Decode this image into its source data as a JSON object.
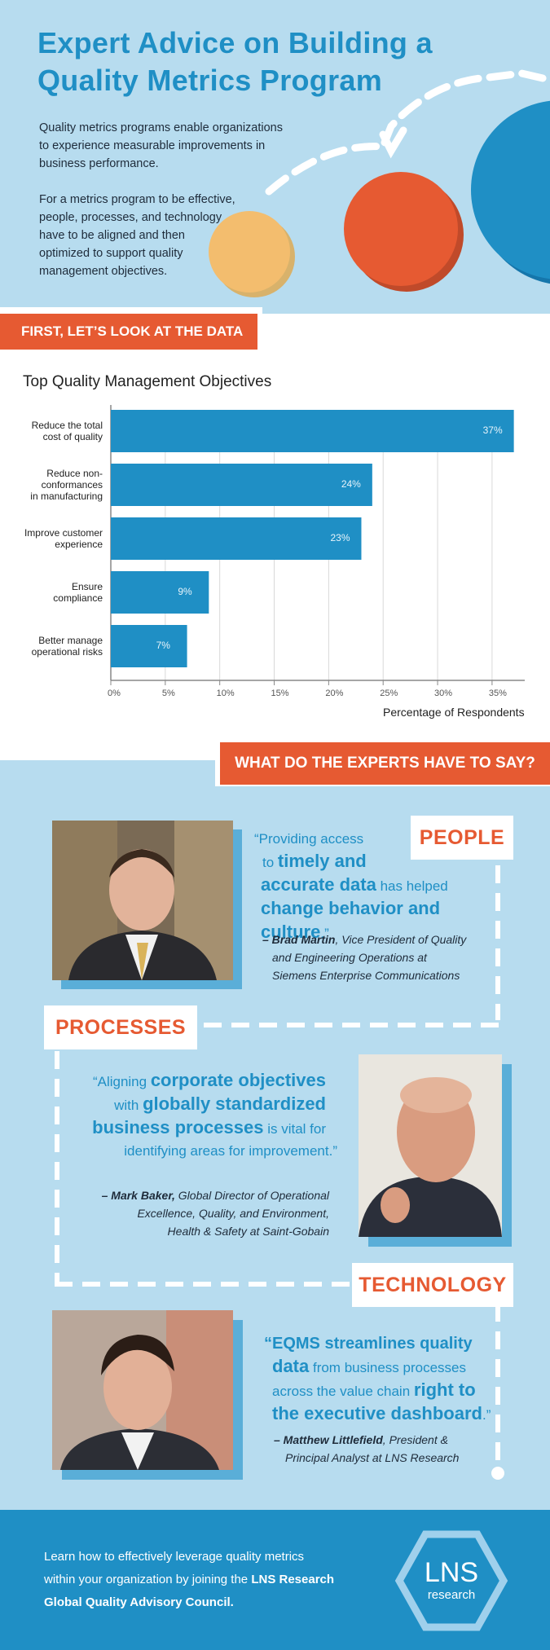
{
  "header": {
    "title": "Expert Advice on Building a Quality Metrics Program",
    "intro_1": "Quality metrics programs enable organizations to experience measurable improvements in business performance.",
    "intro_2": "For a metrics program to be effective, people, processes, and technology have to be aligned and then optimized to support quality management objectives."
  },
  "section1": {
    "banner": "FIRST, LET’S LOOK AT THE DATA"
  },
  "chart_data": {
    "type": "bar",
    "orientation": "horizontal",
    "title": "Top Quality Management Objectives",
    "xlabel": "Percentage of Respondents",
    "categories": [
      "Reduce the total cost of quality",
      "Reduce non-conformances in manufacturing",
      "Improve customer experience",
      "Ensure compliance",
      "Better manage operational risks"
    ],
    "category_lines": [
      [
        "Reduce the total",
        "cost of quality"
      ],
      [
        "Reduce non-",
        "conformances",
        "in manufacturing"
      ],
      [
        "Improve customer",
        "experience"
      ],
      [
        "Ensure",
        "compliance"
      ],
      [
        "Better manage",
        "operational risks"
      ]
    ],
    "values": [
      37,
      24,
      23,
      9,
      7
    ],
    "value_labels": [
      "37%",
      "24%",
      "23%",
      "9%",
      "7%"
    ],
    "xlim": [
      0,
      38
    ],
    "ticks": [
      0,
      5,
      10,
      15,
      20,
      25,
      30,
      35
    ],
    "tick_labels": [
      "0%",
      "5%",
      "10%",
      "15%",
      "20%",
      "25%",
      "30%",
      "35%"
    ],
    "grid": true,
    "bar_color": "#1f8fc5"
  },
  "section2": {
    "banner": "WHAT DO THE EXPERTS HAVE TO SAY?"
  },
  "people": {
    "tag": "PEOPLE",
    "q1": "“Providing access",
    "q2a": "to ",
    "q2b": "timely and",
    "q3a": "accurate data",
    "q3b": " has helped",
    "q4a": "change behavior and culture",
    "q4b": ".”",
    "name": "– Brad Martin",
    "role1": ", Vice President of Quality",
    "role2": "and Engineering Operations at",
    "role3": "Siemens Enterprise Communications"
  },
  "processes": {
    "tag": "PROCESSES",
    "q1a": "“Aligning ",
    "q1b": "corporate objectives",
    "q2a": "with ",
    "q2b": "globally standardized",
    "q3a": "business processes",
    "q3b": " is vital for",
    "q4": "identifying areas for improvement.”",
    "name": "– Mark Baker,",
    "role1": " Global Director of Operational",
    "role2": "Excellence, Quality, and Environment,",
    "role3": "Health & Safety at Saint-Gobain"
  },
  "technology": {
    "tag": "TECHNOLOGY",
    "q1": "“EQMS streamlines quality",
    "q2a": "data",
    "q2b": " from business processes",
    "q3a": "across the value chain ",
    "q3b": "right to",
    "q4a": "the executive dashboard",
    "q4b": ".”",
    "name": "– Matthew Littlefield",
    "role1": ", President &",
    "role2": "Principal Analyst at LNS Research"
  },
  "footer": {
    "line1": "Learn how to effectively leverage quality metrics",
    "line2a": "within your organization by joining the ",
    "line2b": "LNS Research",
    "line3": "Global Quality Advisory Council.",
    "logo_main": "LNS",
    "logo_sub": "research"
  },
  "colors": {
    "blue": "#1f8fc5",
    "light_blue": "#b7dcef",
    "orange": "#e65a32",
    "yellow": "#f3bd6e"
  }
}
